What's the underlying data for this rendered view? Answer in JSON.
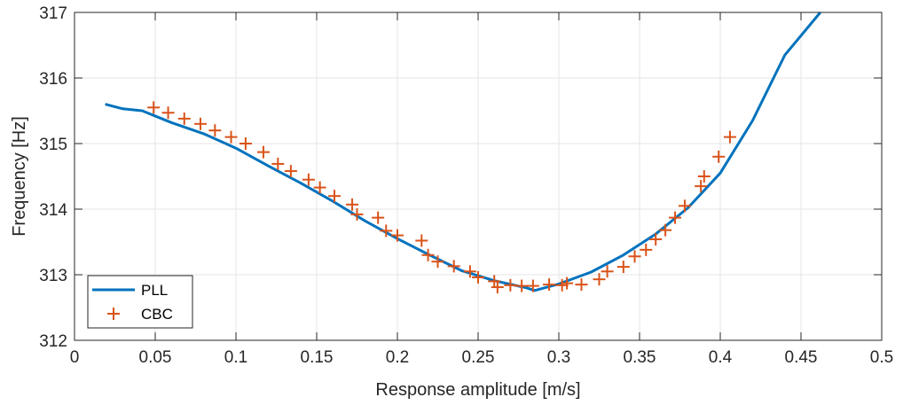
{
  "chart_data": {
    "type": "line",
    "xlabel": "Response amplitude [m/s]",
    "ylabel": "Frequency [Hz]",
    "xlim": [
      0,
      0.5
    ],
    "ylim": [
      312,
      317
    ],
    "xticks": [
      "0",
      "0.05",
      "0.1",
      "0.15",
      "0.2",
      "0.25",
      "0.3",
      "0.35",
      "0.4",
      "0.45",
      "0.5"
    ],
    "yticks": [
      "312",
      "313",
      "314",
      "315",
      "316",
      "317"
    ],
    "grid": true,
    "legend_position": "bottom-left",
    "series": [
      {
        "name": "PLL",
        "style": "line",
        "color": "#0072BD",
        "x": [
          0.019,
          0.03,
          0.042,
          0.06,
          0.08,
          0.1,
          0.12,
          0.14,
          0.16,
          0.18,
          0.2,
          0.22,
          0.24,
          0.26,
          0.28,
          0.285,
          0.3,
          0.32,
          0.34,
          0.36,
          0.38,
          0.4,
          0.42,
          0.44,
          0.462
        ],
        "y": [
          315.6,
          315.53,
          315.5,
          315.32,
          315.15,
          314.93,
          314.66,
          314.4,
          314.12,
          313.82,
          313.55,
          313.3,
          313.06,
          312.91,
          312.8,
          312.76,
          312.86,
          313.04,
          313.3,
          313.62,
          314.02,
          314.55,
          315.35,
          316.35,
          317.0
        ]
      },
      {
        "name": "CBC",
        "style": "marker",
        "color": "#D95319",
        "x": [
          0.049,
          0.058,
          0.068,
          0.078,
          0.087,
          0.097,
          0.106,
          0.117,
          0.126,
          0.134,
          0.145,
          0.152,
          0.161,
          0.172,
          0.175,
          0.188,
          0.193,
          0.2,
          0.215,
          0.219,
          0.225,
          0.235,
          0.245,
          0.25,
          0.26,
          0.262,
          0.27,
          0.277,
          0.284,
          0.294,
          0.302,
          0.305,
          0.314,
          0.325,
          0.33,
          0.34,
          0.347,
          0.354,
          0.36,
          0.366,
          0.372,
          0.378,
          0.388,
          0.39,
          0.399,
          0.406
        ],
        "y": [
          315.55,
          315.47,
          315.38,
          315.3,
          315.2,
          315.1,
          315.0,
          314.87,
          314.69,
          314.58,
          314.45,
          314.33,
          314.2,
          314.07,
          313.92,
          313.87,
          313.67,
          313.6,
          313.52,
          313.3,
          313.2,
          313.13,
          313.05,
          312.96,
          312.9,
          312.81,
          312.84,
          312.83,
          312.83,
          312.85,
          312.84,
          312.87,
          312.85,
          312.93,
          313.05,
          313.12,
          313.28,
          313.38,
          313.54,
          313.68,
          313.87,
          314.05,
          314.35,
          314.5,
          314.8,
          315.1
        ]
      }
    ]
  }
}
